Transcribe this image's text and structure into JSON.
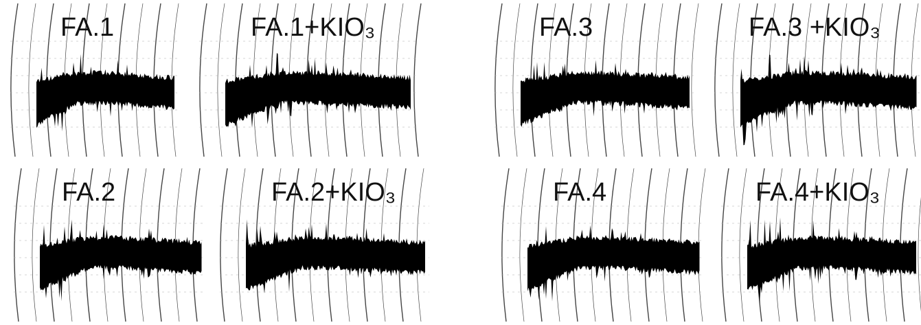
{
  "panels": [
    {
      "label": "FA.1"
    },
    {
      "label": "FA.1+KIO₃"
    },
    {
      "label": "FA.3"
    },
    {
      "label": "FA.3 +KIO₃"
    },
    {
      "label": "FA.2"
    },
    {
      "label": "FA.2+KIO₃"
    },
    {
      "label": "FA.4"
    },
    {
      "label": "FA.4+KIO₃"
    }
  ]
}
